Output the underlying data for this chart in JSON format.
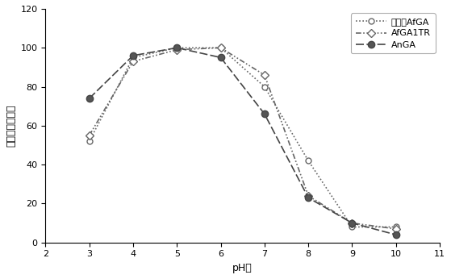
{
  "title": "",
  "xlabel": "pH値",
  "ylabel": "相対活量（％）",
  "xlim": [
    2,
    11
  ],
  "ylim": [
    0,
    120
  ],
  "xticks": [
    2,
    3,
    4,
    5,
    6,
    7,
    8,
    9,
    10,
    11
  ],
  "yticks": [
    0,
    20,
    40,
    60,
    80,
    100,
    120
  ],
  "series": [
    {
      "label": "天然のAfGA",
      "x": [
        3,
        4,
        5,
        6,
        7,
        8,
        9,
        10
      ],
      "y": [
        52,
        95,
        100,
        100,
        80,
        42,
        8,
        8
      ],
      "color": "#666666",
      "linestyle_key": "dotted",
      "marker": "o",
      "markersize": 5,
      "markerfacecolor": "white",
      "linewidth": 1.2
    },
    {
      "label": "AfGA1TR",
      "x": [
        3,
        4,
        5,
        6,
        7,
        8,
        9,
        10
      ],
      "y": [
        55,
        93,
        99,
        100,
        86,
        24,
        10,
        7
      ],
      "color": "#666666",
      "linestyle_key": "dashdotdot",
      "marker": "D",
      "markersize": 5,
      "markerfacecolor": "white",
      "linewidth": 1.2
    },
    {
      "label": "AnGA",
      "x": [
        3,
        4,
        5,
        6,
        7,
        8,
        9,
        10
      ],
      "y": [
        74,
        96,
        100,
        95,
        66,
        23,
        10,
        4
      ],
      "color": "#444444",
      "linestyle_key": "longdash",
      "marker": "o",
      "markersize": 6,
      "markerfacecolor": "#555555",
      "linewidth": 1.2
    }
  ],
  "legend_loc": "upper right",
  "background_color": "#ffffff"
}
